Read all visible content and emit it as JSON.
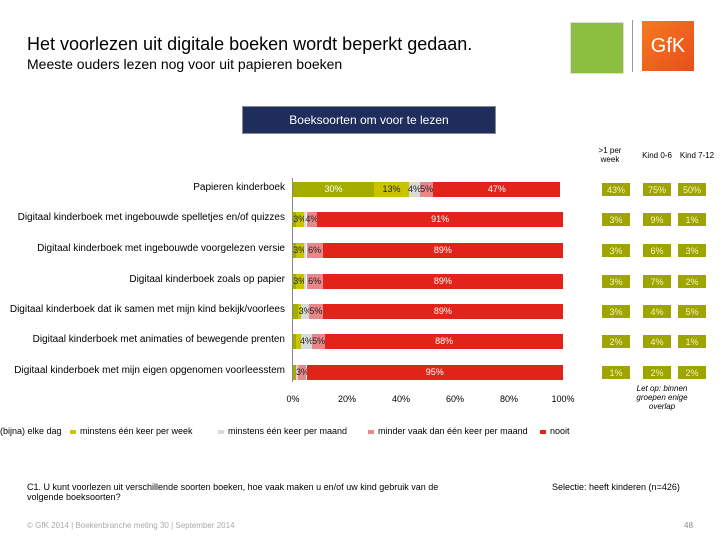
{
  "title": "Het voorlezen uit digitale boeken wordt beperkt gedaan.",
  "subtitle": "Meeste ouders lezen nog voor uit papieren boeken",
  "logos": {
    "gfk": "GfK"
  },
  "chart_header": "Boeksoorten om voor te lezen",
  "chart_data": {
    "type": "bar",
    "orientation": "horizontal-stacked-100",
    "categories": [
      "Papieren kinderboek",
      "Digitaal kinderboek met ingebouwde spelletjes en/of quizzes",
      "Digitaal kinderboek met ingebouwde voorgelezen versie",
      "Digitaal kinderboek zoals op papier",
      "Digitaal kinderboek dat ik samen met mijn kind bekijk/voorlees",
      "Digitaal kinderboek met animaties of bewegende prenten",
      "Digitaal kinderboek met mijn eigen opgenomen voorleesstem"
    ],
    "series": [
      {
        "name": "(bijna) elke dag",
        "color": "#a3ad00",
        "values": [
          30,
          1,
          1,
          1,
          2,
          1,
          1
        ]
      },
      {
        "name": "minstens één keer per week",
        "color": "#c9c400",
        "values": [
          13,
          3,
          3,
          3,
          1,
          2,
          0
        ]
      },
      {
        "name": "minstens één keer per maand",
        "color": "#d9d9d9",
        "values": [
          4,
          1,
          1,
          1,
          3,
          4,
          1
        ]
      },
      {
        "name": "minder vaak dan één keer per maand",
        "color": "#e8868a",
        "values": [
          5,
          4,
          6,
          6,
          5,
          5,
          3
        ]
      },
      {
        "name": "nooit",
        "color": "#e2231a",
        "values": [
          47,
          91,
          89,
          89,
          89,
          88,
          95
        ]
      }
    ],
    "xticks": [
      "0%",
      "20%",
      "40%",
      "60%",
      "80%",
      "100%"
    ],
    "xlim": [
      0,
      100
    ],
    "legend": "bottom",
    "side_columns": {
      "headers": [
        ">1 per week",
        "Kind 0-6",
        "Kind 7-12"
      ],
      "values": [
        [
          "43%",
          "75%",
          "50%"
        ],
        [
          "3%",
          "9%",
          "1%"
        ],
        [
          "3%",
          "6%",
          "3%"
        ],
        [
          "3%",
          "7%",
          "2%"
        ],
        [
          "3%",
          "4%",
          "5%"
        ],
        [
          "2%",
          "4%",
          "1%"
        ],
        [
          "1%",
          "2%",
          "2%"
        ]
      ]
    }
  },
  "note": "Let op: binnen groepen enige overlap",
  "question": "C1. U kunt voorlezen uit verschillende soorten boeken, hoe vaak maken u en/of uw kind gebruik van de volgende boeksoorten?",
  "selectie": "Selectie: heeft kinderen (n=426)",
  "footer": "© GfK 2014 | Boekenbranche meting 30 | September 2014",
  "page_number": "48"
}
